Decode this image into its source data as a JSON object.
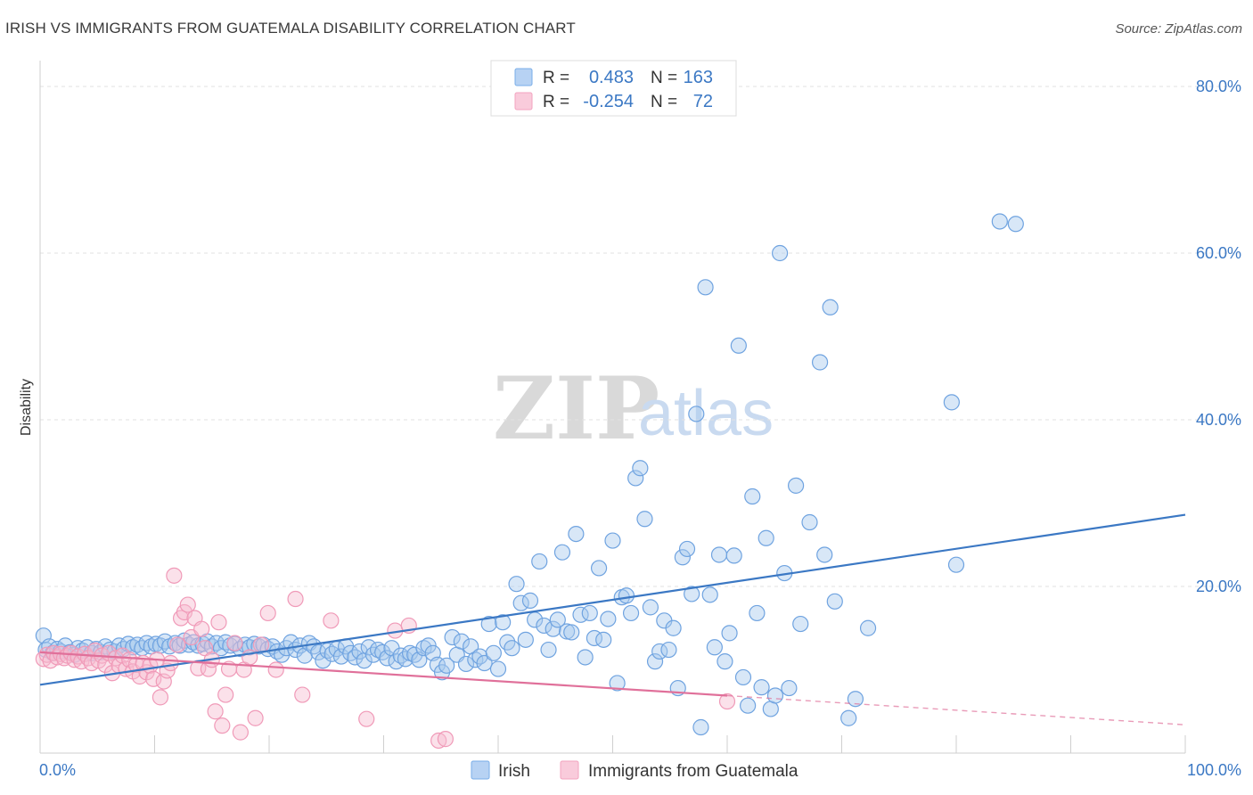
{
  "header": {
    "title": "IRISH VS IMMIGRANTS FROM GUATEMALA DISABILITY CORRELATION CHART",
    "source": "Source: ZipAtlas.com"
  },
  "watermark": {
    "zip": "ZIP",
    "atlas": "atlas"
  },
  "legend": {
    "rows": [
      {
        "r_label": "R =",
        "r_value": "0.483",
        "n_label": "N =",
        "n_value": "163",
        "color": "#7aaee8"
      },
      {
        "r_label": "R =",
        "r_value": "-0.254",
        "n_label": "N =",
        "n_value": "72",
        "color": "#f3a3bf"
      }
    ]
  },
  "bottom_legend": [
    {
      "label": "Irish",
      "color": "#7aaee8"
    },
    {
      "label": "Immigrants from Guatemala",
      "color": "#f3a3bf"
    }
  ],
  "chart_data": {
    "type": "scatter",
    "title": "IRISH VS IMMIGRANTS FROM GUATEMALA DISABILITY CORRELATION CHART",
    "xlabel": "",
    "ylabel": "Disability",
    "xlim": [
      0,
      100
    ],
    "ylim": [
      0,
      80
    ],
    "x_tick_labels": [
      "0.0%",
      "100.0%"
    ],
    "y_ticks": [
      20,
      40,
      60,
      80
    ],
    "y_tick_labels": [
      "20.0%",
      "40.0%",
      "60.0%",
      "80.0%"
    ],
    "grid": "horizontal dashed",
    "legend_position": "top-center",
    "series": [
      {
        "name": "Irish",
        "color": "#3b78c4",
        "fill": "#a9c9ee",
        "trend": {
          "x": [
            0,
            100
          ],
          "y": [
            8.2,
            28.6
          ],
          "style": "solid"
        },
        "points": [
          [
            0.3,
            14.1
          ],
          [
            0.5,
            12.4
          ],
          [
            0.8,
            12.8
          ],
          [
            1.1,
            12.0
          ],
          [
            1.5,
            12.5
          ],
          [
            1.8,
            12.2
          ],
          [
            2.2,
            12.9
          ],
          [
            2.6,
            12.1
          ],
          [
            3.0,
            11.8
          ],
          [
            3.3,
            12.6
          ],
          [
            3.7,
            12.3
          ],
          [
            4.1,
            12.7
          ],
          [
            4.5,
            12.0
          ],
          [
            4.9,
            12.5
          ],
          [
            5.3,
            12.1
          ],
          [
            5.7,
            12.8
          ],
          [
            6.1,
            12.4
          ],
          [
            6.5,
            12.2
          ],
          [
            6.9,
            12.9
          ],
          [
            7.3,
            12.5
          ],
          [
            7.7,
            13.1
          ],
          [
            8.1,
            12.7
          ],
          [
            8.5,
            13.0
          ],
          [
            8.9,
            12.6
          ],
          [
            9.3,
            13.2
          ],
          [
            9.7,
            12.8
          ],
          [
            10.1,
            13.1
          ],
          [
            10.5,
            12.9
          ],
          [
            10.9,
            13.4
          ],
          [
            11.3,
            12.8
          ],
          [
            11.8,
            13.2
          ],
          [
            12.2,
            12.9
          ],
          [
            12.6,
            13.5
          ],
          [
            13.0,
            13.0
          ],
          [
            13.4,
            13.3
          ],
          [
            13.8,
            12.9
          ],
          [
            14.2,
            13.1
          ],
          [
            14.6,
            13.4
          ],
          [
            15.0,
            12.8
          ],
          [
            15.4,
            13.2
          ],
          [
            15.8,
            12.6
          ],
          [
            16.2,
            13.3
          ],
          [
            16.6,
            12.9
          ],
          [
            17.0,
            13.1
          ],
          [
            17.5,
            12.5
          ],
          [
            17.9,
            13.0
          ],
          [
            18.3,
            12.7
          ],
          [
            18.7,
            13.1
          ],
          [
            19.1,
            12.8
          ],
          [
            19.5,
            13.0
          ],
          [
            19.9,
            12.5
          ],
          [
            20.3,
            12.8
          ],
          [
            20.7,
            12.2
          ],
          [
            21.1,
            11.8
          ],
          [
            21.5,
            12.6
          ],
          [
            21.9,
            13.3
          ],
          [
            22.3,
            12.4
          ],
          [
            22.7,
            12.9
          ],
          [
            23.1,
            11.7
          ],
          [
            23.5,
            13.2
          ],
          [
            23.9,
            12.8
          ],
          [
            24.3,
            12.1
          ],
          [
            24.7,
            11.1
          ],
          [
            25.1,
            12.3
          ],
          [
            25.5,
            11.9
          ],
          [
            25.9,
            12.5
          ],
          [
            26.3,
            11.6
          ],
          [
            26.7,
            12.8
          ],
          [
            27.1,
            12.0
          ],
          [
            27.5,
            11.5
          ],
          [
            27.9,
            12.2
          ],
          [
            28.3,
            11.1
          ],
          [
            28.7,
            12.7
          ],
          [
            29.1,
            11.8
          ],
          [
            29.5,
            12.4
          ],
          [
            29.9,
            12.1
          ],
          [
            30.3,
            11.4
          ],
          [
            30.7,
            12.6
          ],
          [
            31.1,
            11.0
          ],
          [
            31.5,
            11.7
          ],
          [
            31.9,
            11.3
          ],
          [
            32.3,
            12.0
          ],
          [
            32.7,
            11.8
          ],
          [
            33.1,
            11.2
          ],
          [
            33.5,
            12.6
          ],
          [
            33.9,
            12.9
          ],
          [
            34.3,
            12.0
          ],
          [
            34.7,
            10.6
          ],
          [
            35.1,
            9.7
          ],
          [
            35.5,
            10.5
          ],
          [
            36.0,
            13.9
          ],
          [
            36.4,
            11.8
          ],
          [
            36.8,
            13.4
          ],
          [
            37.2,
            10.7
          ],
          [
            37.6,
            12.8
          ],
          [
            38.0,
            11.2
          ],
          [
            38.4,
            11.6
          ],
          [
            38.8,
            10.8
          ],
          [
            39.2,
            15.5
          ],
          [
            39.6,
            12.0
          ],
          [
            40.0,
            10.1
          ],
          [
            40.4,
            15.7
          ],
          [
            40.8,
            13.3
          ],
          [
            41.2,
            12.6
          ],
          [
            41.6,
            20.3
          ],
          [
            42.0,
            18.0
          ],
          [
            42.4,
            13.6
          ],
          [
            42.8,
            18.3
          ],
          [
            43.2,
            16.0
          ],
          [
            43.6,
            23.0
          ],
          [
            44.0,
            15.3
          ],
          [
            44.4,
            12.4
          ],
          [
            44.8,
            14.9
          ],
          [
            45.2,
            16.0
          ],
          [
            45.6,
            24.1
          ],
          [
            46.0,
            14.6
          ],
          [
            46.4,
            14.5
          ],
          [
            46.8,
            26.3
          ],
          [
            47.2,
            16.6
          ],
          [
            47.6,
            11.5
          ],
          [
            48.0,
            16.8
          ],
          [
            48.4,
            13.8
          ],
          [
            48.8,
            22.2
          ],
          [
            49.2,
            13.6
          ],
          [
            49.6,
            16.1
          ],
          [
            50.0,
            25.5
          ],
          [
            50.4,
            8.4
          ],
          [
            50.8,
            18.7
          ],
          [
            51.2,
            18.9
          ],
          [
            51.6,
            16.8
          ],
          [
            52.0,
            33.0
          ],
          [
            52.4,
            34.2
          ],
          [
            52.8,
            28.1
          ],
          [
            53.3,
            17.5
          ],
          [
            53.7,
            11.0
          ],
          [
            54.1,
            12.2
          ],
          [
            54.5,
            15.9
          ],
          [
            54.9,
            12.4
          ],
          [
            55.3,
            15.0
          ],
          [
            55.7,
            7.8
          ],
          [
            56.1,
            23.5
          ],
          [
            56.5,
            24.5
          ],
          [
            56.9,
            19.1
          ],
          [
            57.3,
            40.7
          ],
          [
            57.7,
            3.1
          ],
          [
            58.1,
            55.9
          ],
          [
            58.5,
            19.0
          ],
          [
            58.9,
            12.7
          ],
          [
            59.3,
            23.8
          ],
          [
            59.8,
            11.0
          ],
          [
            60.2,
            14.4
          ],
          [
            60.6,
            23.7
          ],
          [
            61.0,
            48.9
          ],
          [
            61.4,
            9.1
          ],
          [
            61.8,
            5.7
          ],
          [
            62.2,
            30.8
          ],
          [
            62.6,
            16.8
          ],
          [
            63.0,
            7.9
          ],
          [
            63.4,
            25.8
          ],
          [
            63.8,
            5.3
          ],
          [
            64.2,
            6.9
          ],
          [
            64.6,
            60.0
          ],
          [
            65.0,
            21.6
          ],
          [
            65.4,
            7.8
          ],
          [
            66.0,
            32.1
          ],
          [
            66.4,
            15.5
          ],
          [
            67.2,
            27.7
          ],
          [
            68.1,
            46.9
          ],
          [
            68.5,
            23.8
          ],
          [
            69.0,
            53.5
          ],
          [
            69.4,
            18.2
          ],
          [
            70.6,
            4.2
          ],
          [
            71.2,
            6.5
          ],
          [
            72.3,
            15.0
          ],
          [
            79.6,
            42.1
          ],
          [
            80.0,
            22.6
          ],
          [
            83.8,
            63.8
          ],
          [
            85.2,
            63.5
          ]
        ]
      },
      {
        "name": "Immigrants from Guatemala",
        "color": "#e0709a",
        "fill": "#f6bdd0",
        "trend": {
          "x": [
            0,
            60
          ],
          "y": [
            12.1,
            6.9
          ],
          "style": "solid",
          "dashed_extension": {
            "x": [
              60,
              100
            ],
            "y": [
              6.9,
              3.4
            ]
          }
        },
        "points": [
          [
            0.3,
            11.3
          ],
          [
            0.6,
            11.8
          ],
          [
            0.9,
            11.1
          ],
          [
            1.2,
            12.0
          ],
          [
            1.5,
            11.5
          ],
          [
            1.8,
            11.9
          ],
          [
            2.1,
            11.4
          ],
          [
            2.4,
            11.7
          ],
          [
            2.7,
            12.0
          ],
          [
            3.0,
            11.2
          ],
          [
            3.3,
            11.6
          ],
          [
            3.6,
            11.0
          ],
          [
            3.9,
            11.9
          ],
          [
            4.2,
            11.4
          ],
          [
            4.5,
            10.8
          ],
          [
            4.8,
            12.3
          ],
          [
            5.1,
            11.1
          ],
          [
            5.4,
            11.7
          ],
          [
            5.7,
            10.6
          ],
          [
            6.0,
            12.0
          ],
          [
            6.3,
            9.6
          ],
          [
            6.6,
            11.4
          ],
          [
            6.9,
            10.5
          ],
          [
            7.2,
            11.7
          ],
          [
            7.5,
            10.1
          ],
          [
            7.8,
            11.2
          ],
          [
            8.1,
            9.8
          ],
          [
            8.4,
            10.6
          ],
          [
            8.7,
            9.2
          ],
          [
            9.0,
            10.8
          ],
          [
            9.3,
            9.7
          ],
          [
            9.6,
            10.5
          ],
          [
            9.9,
            8.9
          ],
          [
            10.2,
            11.2
          ],
          [
            10.5,
            6.7
          ],
          [
            10.8,
            8.6
          ],
          [
            11.1,
            9.9
          ],
          [
            11.4,
            10.8
          ],
          [
            11.7,
            21.3
          ],
          [
            12.0,
            13.0
          ],
          [
            12.3,
            16.2
          ],
          [
            12.6,
            16.9
          ],
          [
            12.9,
            17.8
          ],
          [
            13.2,
            13.9
          ],
          [
            13.5,
            16.2
          ],
          [
            13.8,
            10.2
          ],
          [
            14.1,
            14.9
          ],
          [
            14.4,
            12.6
          ],
          [
            14.7,
            10.1
          ],
          [
            15.0,
            11.2
          ],
          [
            15.3,
            5.0
          ],
          [
            15.6,
            15.7
          ],
          [
            15.9,
            3.3
          ],
          [
            16.2,
            7.0
          ],
          [
            16.5,
            10.1
          ],
          [
            17.0,
            13.2
          ],
          [
            17.5,
            2.5
          ],
          [
            17.8,
            10.0
          ],
          [
            18.3,
            11.5
          ],
          [
            18.8,
            4.2
          ],
          [
            19.3,
            13.0
          ],
          [
            19.9,
            16.8
          ],
          [
            20.6,
            10.0
          ],
          [
            22.3,
            18.5
          ],
          [
            22.9,
            7.0
          ],
          [
            25.4,
            15.9
          ],
          [
            28.5,
            4.1
          ],
          [
            31.0,
            14.7
          ],
          [
            32.2,
            15.3
          ],
          [
            34.8,
            1.5
          ],
          [
            35.4,
            1.7
          ],
          [
            60.0,
            6.2
          ]
        ]
      }
    ]
  }
}
